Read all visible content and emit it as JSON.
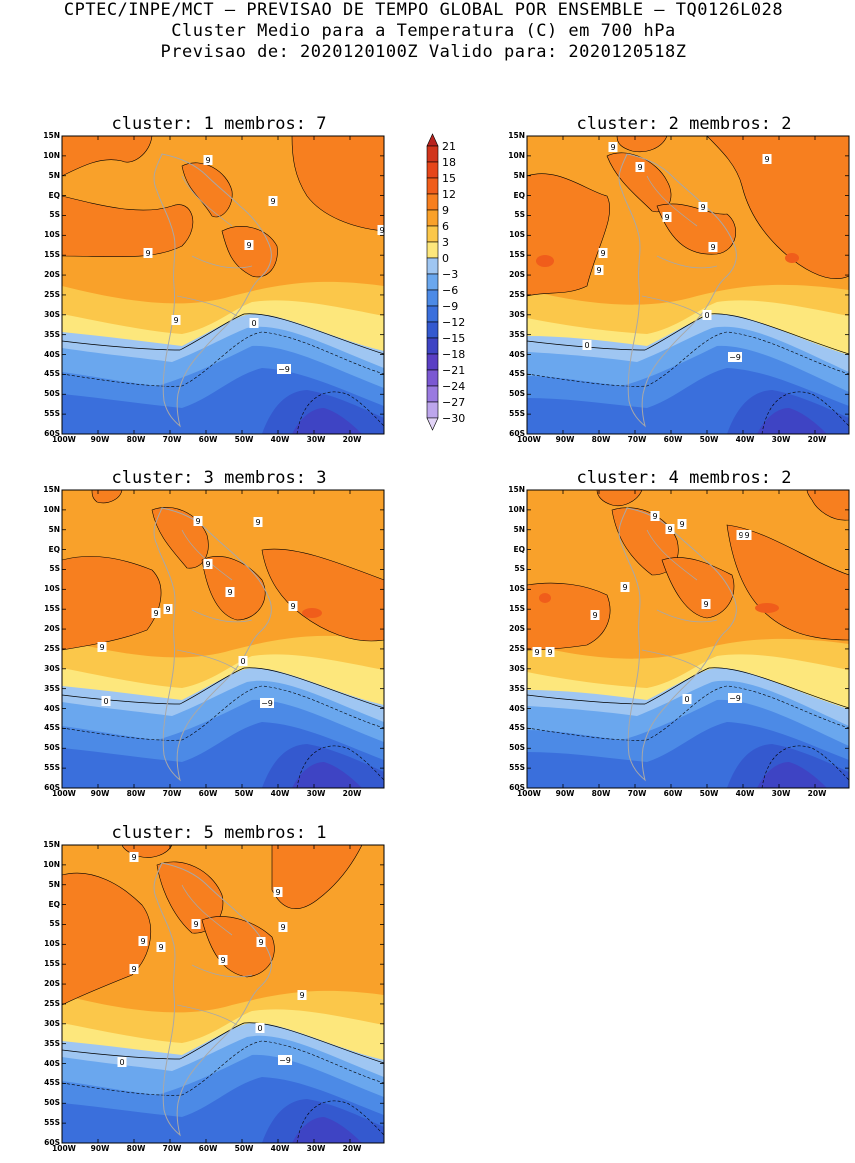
{
  "header": {
    "line1": "CPTEC/INPE/MCT – PREVISAO DE TEMPO GLOBAL POR ENSEMBLE – TQ0126L028",
    "line2": "Cluster Medio para a Temperatura (C) em 700 hPa",
    "line3": "Previsao de: 2020120100Z   Valido para: 2020120518Z"
  },
  "axes": {
    "lat_labels": [
      "15N",
      "10N",
      "5N",
      "EQ",
      "5S",
      "10S",
      "15S",
      "20S",
      "25S",
      "30S",
      "35S",
      "40S",
      "45S",
      "50S",
      "55S",
      "60S"
    ],
    "lon_labels": [
      "100W",
      "90W",
      "80W",
      "70W",
      "60W",
      "50W",
      "40W",
      "30W",
      "20W"
    ]
  },
  "colorbar": {
    "labels": [
      "21",
      "18",
      "15",
      "12",
      "9",
      "6",
      "3",
      "0",
      "-3",
      "-6",
      "-9",
      "-12",
      "-15",
      "-18",
      "-21",
      "-24",
      "-27",
      "-30"
    ],
    "colors": [
      "#b8231f",
      "#d1351c",
      "#e6461a",
      "#f05d1b",
      "#f77f1f",
      "#f9a12a",
      "#fbc74a",
      "#fde77c",
      "#9fc6f2",
      "#6aa7ee",
      "#4c8ae6",
      "#3a6fdc",
      "#3459cf",
      "#3e44c4",
      "#5a3fc4",
      "#7b58d2",
      "#9a7ae0",
      "#bda6ec",
      "#e1d3f6"
    ]
  },
  "clusters": [
    {
      "label": "cluster:",
      "num": "1",
      "members_label": "membros:",
      "members": "7",
      "contour_labels": [
        "9",
        "9",
        "9",
        "9",
        "9",
        "9",
        "0",
        "-9"
      ]
    },
    {
      "label": "cluster:",
      "num": "2",
      "members_label": "membros:",
      "members": "2",
      "contour_labels": [
        "9",
        "9",
        "9",
        "9",
        "9",
        "9",
        "9",
        "9",
        "0",
        "0",
        "-9"
      ]
    },
    {
      "label": "cluster:",
      "num": "3",
      "members_label": "membros:",
      "members": "3",
      "contour_labels": [
        "9",
        "9",
        "9",
        "9",
        "9",
        "9",
        "9",
        "9",
        "0",
        "0",
        "-9"
      ]
    },
    {
      "label": "cluster:",
      "num": "4",
      "members_label": "membros:",
      "members": "2",
      "contour_labels": [
        "9",
        "9",
        "9",
        "9",
        "9",
        "9",
        "9",
        "9",
        "9",
        "9",
        "0",
        "-9"
      ]
    },
    {
      "label": "cluster:",
      "num": "5",
      "members_label": "membros:",
      "members": "1",
      "contour_labels": [
        "9",
        "9",
        "9",
        "9",
        "9",
        "9",
        "9",
        "9",
        "9",
        "9",
        "0",
        "0",
        "-9"
      ]
    }
  ]
}
